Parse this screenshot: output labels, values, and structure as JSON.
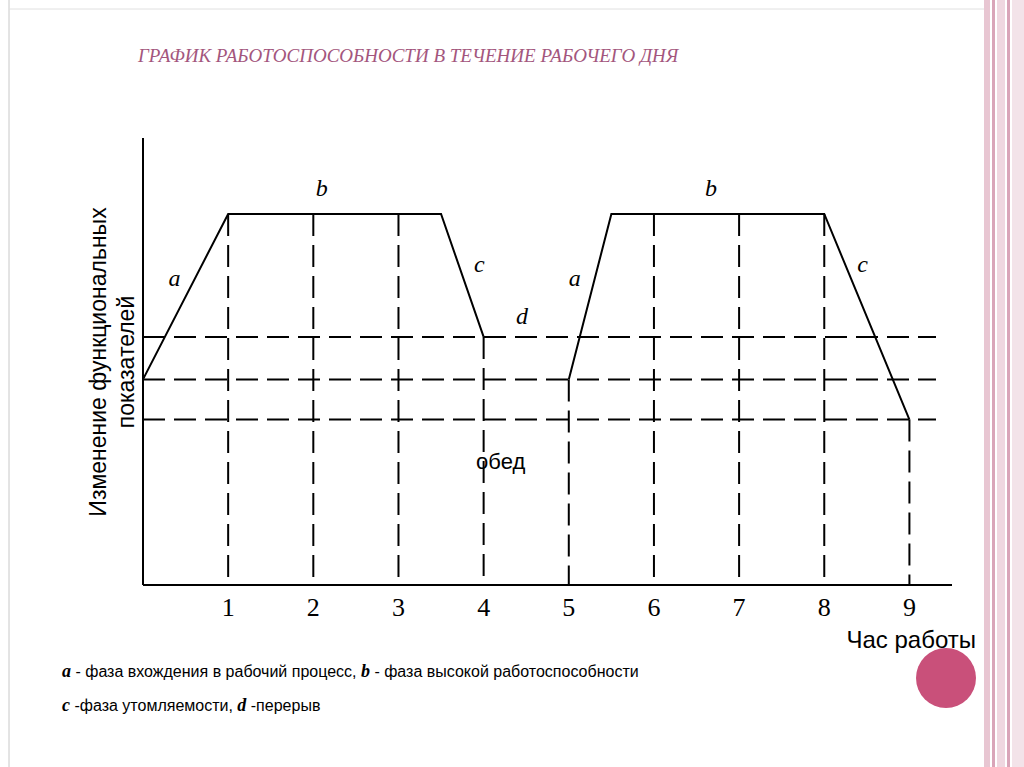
{
  "chart_data": {
    "type": "line",
    "title": "ГРАФИК РАБОТОСПОСОБНОСТИ В ТЕЧЕНИЕ РАБОЧЕГО ДНЯ",
    "y_label": [
      "Изменение функциональных",
      "показателей"
    ],
    "x_label": "Час работы",
    "x": [
      0,
      1,
      3.5,
      4,
      4.5,
      5,
      5.5,
      8,
      9
    ],
    "series": [
      {
        "color": "#000000",
        "line_style": "solid",
        "values": [
          46,
          83,
          83,
          55.5,
          null,
          46,
          83,
          83,
          37
        ]
      }
    ],
    "xlim": [
      0,
      9.5
    ],
    "xticks": [
      1,
      2,
      3,
      4,
      5,
      6,
      7,
      8,
      9
    ],
    "ylim": [
      0,
      100
    ],
    "yticks": [],
    "tick_labels": "x",
    "grid": false,
    "reference_lines": [
      55.5,
      46,
      37
    ],
    "annotations": [
      {
        "text": "a",
        "x": 0.37,
        "y": 67
      },
      {
        "text": "b",
        "x": 2.1,
        "y": 87
      },
      {
        "text": "c",
        "x": 3.95,
        "y": 70
      },
      {
        "text": "a",
        "x": 5.07,
        "y": 67
      },
      {
        "text": "b",
        "x": 6.67,
        "y": 87
      },
      {
        "text": "c",
        "x": 8.45,
        "y": 70
      },
      {
        "text": "d",
        "x": 4.45,
        "y": 58.5
      },
      {
        "text": "обед",
        "x": 4.2,
        "y": 26
      }
    ],
    "caption": [
      [
        {
          "term": "a",
          "desc": " - фаза вхождения в рабочий процесс, "
        },
        {
          "term": "b",
          "desc": " - фаза высокой работоспособности"
        }
      ],
      [
        {
          "term": "c",
          "desc": " -фаза утомляемости, "
        },
        {
          "term": "d",
          "desc": " -перерыв"
        }
      ]
    ]
  }
}
